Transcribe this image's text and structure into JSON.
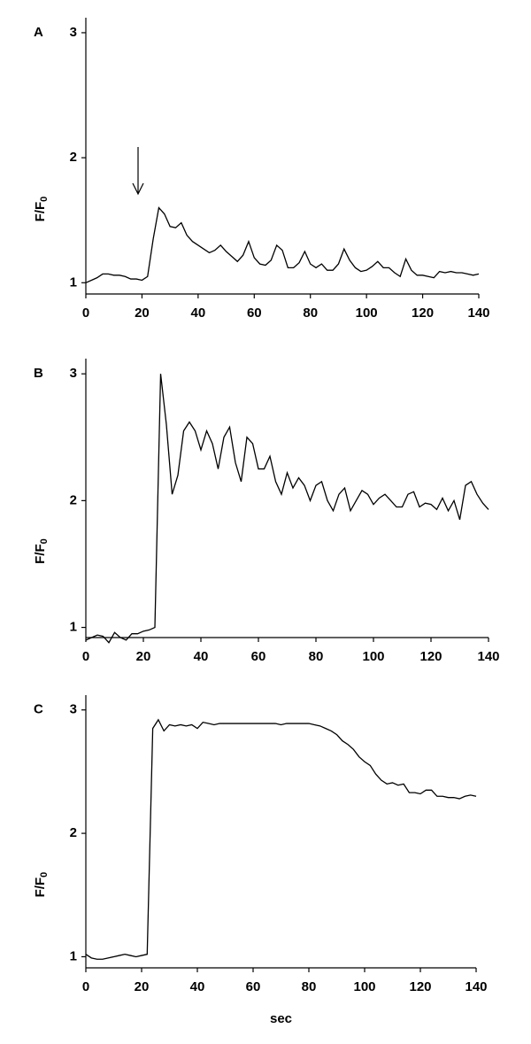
{
  "chart_data": [
    {
      "type": "line",
      "panel_label": "A",
      "ylabel": "F/F",
      "ylabel_subscript": "0",
      "color": "#000000",
      "xlim": [
        0,
        140
      ],
      "xticks": [
        0,
        20,
        40,
        60,
        80,
        100,
        120,
        140
      ],
      "ylim": [
        0.91,
        3.12
      ],
      "yticks": [
        1,
        2,
        3
      ],
      "x": [
        0,
        2,
        4,
        6,
        8,
        10,
        12,
        14,
        16,
        18,
        20,
        22,
        24,
        26,
        28,
        30,
        32,
        34,
        36,
        38,
        40,
        42,
        44,
        46,
        48,
        50,
        52,
        54,
        56,
        58,
        60,
        62,
        64,
        66,
        68,
        70,
        72,
        74,
        76,
        78,
        80,
        82,
        84,
        86,
        88,
        90,
        92,
        94,
        96,
        98,
        100,
        102,
        104,
        106,
        108,
        110,
        112,
        114,
        116,
        118,
        120,
        122,
        124,
        126,
        128,
        130,
        132,
        134,
        136,
        138,
        140
      ],
      "values": [
        1.0,
        1.02,
        1.04,
        1.07,
        1.07,
        1.06,
        1.06,
        1.05,
        1.03,
        1.03,
        1.02,
        1.05,
        1.35,
        1.6,
        1.55,
        1.45,
        1.44,
        1.48,
        1.38,
        1.33,
        1.3,
        1.27,
        1.24,
        1.26,
        1.3,
        1.25,
        1.21,
        1.17,
        1.22,
        1.33,
        1.2,
        1.15,
        1.14,
        1.18,
        1.3,
        1.26,
        1.12,
        1.12,
        1.16,
        1.25,
        1.15,
        1.12,
        1.15,
        1.1,
        1.1,
        1.15,
        1.27,
        1.18,
        1.12,
        1.09,
        1.1,
        1.13,
        1.17,
        1.12,
        1.12,
        1.08,
        1.05,
        1.19,
        1.1,
        1.06,
        1.06,
        1.05,
        1.04,
        1.09,
        1.08,
        1.09,
        1.08,
        1.08,
        1.07,
        1.06,
        1.07
      ]
    },
    {
      "type": "line",
      "panel_label": "B",
      "ylabel": "F/F",
      "ylabel_subscript": "0",
      "color": "#000000",
      "xlim": [
        0,
        140
      ],
      "xticks": [
        0,
        20,
        40,
        60,
        80,
        100,
        120,
        140
      ],
      "ylim": [
        0.92,
        3.12
      ],
      "yticks": [
        1,
        2,
        3
      ],
      "x": [
        0,
        2,
        4,
        6,
        8,
        10,
        12,
        14,
        16,
        18,
        20,
        22,
        24,
        26,
        28,
        30,
        32,
        34,
        36,
        38,
        40,
        42,
        44,
        46,
        48,
        50,
        52,
        54,
        56,
        58,
        60,
        62,
        64,
        66,
        68,
        70,
        72,
        74,
        76,
        78,
        80,
        82,
        84,
        86,
        88,
        90,
        92,
        94,
        96,
        98,
        100,
        102,
        104,
        106,
        108,
        110,
        112,
        114,
        116,
        118,
        120,
        122,
        124,
        126,
        128,
        130,
        132,
        134,
        136,
        138,
        140
      ],
      "values": [
        0.9,
        0.92,
        0.94,
        0.93,
        0.88,
        0.96,
        0.92,
        0.9,
        0.95,
        0.95,
        0.97,
        0.98,
        1.0,
        3.0,
        2.6,
        2.05,
        2.2,
        2.55,
        2.62,
        2.55,
        2.4,
        2.55,
        2.45,
        2.25,
        2.5,
        2.58,
        2.3,
        2.15,
        2.5,
        2.45,
        2.25,
        2.25,
        2.35,
        2.15,
        2.05,
        2.22,
        2.1,
        2.18,
        2.12,
        2.0,
        2.12,
        2.15,
        2.0,
        1.92,
        2.05,
        2.1,
        1.92,
        2.0,
        2.08,
        2.05,
        1.97,
        2.02,
        2.05,
        2.0,
        1.95,
        1.95,
        2.05,
        2.07,
        1.95,
        1.98,
        1.97,
        1.93,
        2.02,
        1.92,
        2.0,
        1.85,
        2.12,
        2.15,
        2.05,
        1.98,
        1.93
      ]
    },
    {
      "type": "line",
      "panel_label": "C",
      "ylabel": "F/F",
      "ylabel_subscript": "0",
      "xlabel": "sec",
      "color": "#000000",
      "xlim": [
        0,
        140
      ],
      "xticks": [
        0,
        20,
        40,
        60,
        80,
        100,
        120,
        140
      ],
      "ylim": [
        0.91,
        3.12
      ],
      "yticks": [
        1,
        2,
        3
      ],
      "x": [
        0,
        2,
        4,
        6,
        8,
        10,
        12,
        14,
        16,
        18,
        20,
        22,
        24,
        26,
        28,
        30,
        32,
        34,
        36,
        38,
        40,
        42,
        44,
        46,
        48,
        50,
        52,
        54,
        56,
        58,
        60,
        62,
        64,
        66,
        68,
        70,
        72,
        74,
        76,
        78,
        80,
        82,
        84,
        86,
        88,
        90,
        92,
        94,
        96,
        98,
        100,
        102,
        104,
        106,
        108,
        110,
        112,
        114,
        116,
        118,
        120,
        122,
        124,
        126,
        128,
        130,
        132,
        134,
        136,
        138,
        140
      ],
      "values": [
        1.02,
        0.99,
        0.98,
        0.98,
        0.99,
        1.0,
        1.01,
        1.02,
        1.01,
        1.0,
        1.01,
        1.02,
        2.85,
        2.92,
        2.83,
        2.88,
        2.87,
        2.88,
        2.87,
        2.88,
        2.85,
        2.9,
        2.89,
        2.88,
        2.89,
        2.89,
        2.89,
        2.89,
        2.89,
        2.89,
        2.89,
        2.89,
        2.89,
        2.89,
        2.89,
        2.88,
        2.89,
        2.89,
        2.89,
        2.89,
        2.89,
        2.88,
        2.87,
        2.85,
        2.83,
        2.8,
        2.75,
        2.72,
        2.68,
        2.62,
        2.58,
        2.55,
        2.48,
        2.43,
        2.4,
        2.41,
        2.39,
        2.4,
        2.33,
        2.33,
        2.32,
        2.35,
        2.35,
        2.3,
        2.3,
        2.29,
        2.29,
        2.28,
        2.3,
        2.31,
        2.3
      ]
    }
  ]
}
